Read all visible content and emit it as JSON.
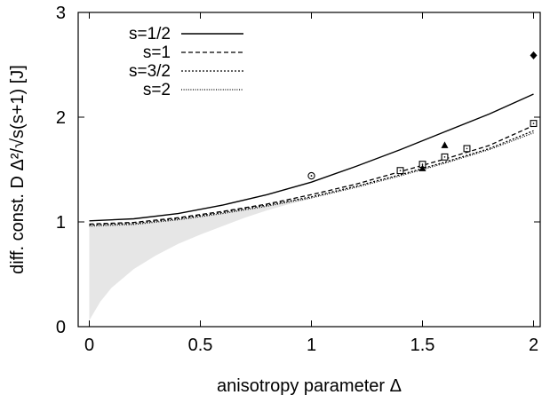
{
  "chart_data": {
    "type": "line",
    "xlabel": "anisotropy parameter Δ",
    "ylabel": "diff. const. D Δ²/√s(s+1) [J]",
    "xlim": [
      -0.05,
      2.03
    ],
    "ylim": [
      0,
      3
    ],
    "x_ticks": [
      {
        "value": 0,
        "label": "0"
      },
      {
        "value": 0.5,
        "label": "0.5"
      },
      {
        "value": 1,
        "label": "1"
      },
      {
        "value": 1.5,
        "label": "1.5"
      },
      {
        "value": 2,
        "label": "2"
      }
    ],
    "y_ticks": [
      {
        "value": 0,
        "label": "0"
      },
      {
        "value": 1,
        "label": "1"
      },
      {
        "value": 2,
        "label": "2"
      },
      {
        "value": 3,
        "label": "3"
      }
    ],
    "grid": false,
    "legend": {
      "position": "top-left"
    },
    "series": [
      {
        "name": "s=1/2",
        "style": "solid",
        "x": [
          0,
          0.2,
          0.4,
          0.6,
          0.8,
          1.0,
          1.2,
          1.4,
          1.6,
          1.8,
          2.0
        ],
        "y": [
          1.01,
          1.03,
          1.08,
          1.16,
          1.26,
          1.38,
          1.53,
          1.69,
          1.86,
          2.03,
          2.22
        ]
      },
      {
        "name": "s=1",
        "style": "dashed",
        "x": [
          0,
          0.2,
          0.4,
          0.6,
          0.8,
          1.0,
          1.2,
          1.4,
          1.6,
          1.8,
          2.0
        ],
        "y": [
          0.98,
          0.995,
          1.04,
          1.1,
          1.17,
          1.26,
          1.36,
          1.48,
          1.6,
          1.73,
          1.92
        ]
      },
      {
        "name": "s=3/2",
        "style": "dotted",
        "x": [
          0,
          0.2,
          0.4,
          0.6,
          0.8,
          1.0,
          1.2,
          1.4,
          1.6,
          1.8,
          2.0
        ],
        "y": [
          0.97,
          0.985,
          1.03,
          1.09,
          1.16,
          1.24,
          1.34,
          1.45,
          1.57,
          1.7,
          1.87
        ]
      },
      {
        "name": "s=2",
        "style": "fine-dotted",
        "x": [
          0,
          0.2,
          0.4,
          0.6,
          0.8,
          1.0,
          1.2,
          1.4,
          1.6,
          1.8,
          2.0
        ],
        "y": [
          0.96,
          0.975,
          1.02,
          1.08,
          1.15,
          1.23,
          1.33,
          1.44,
          1.56,
          1.69,
          1.85
        ]
      }
    ],
    "shaded_region": {
      "color": "#e6e6e6",
      "x": [
        0,
        0.05,
        0.1,
        0.2,
        0.3,
        0.4,
        0.5,
        0.6,
        0.7,
        0.8,
        0.9,
        1.0
      ],
      "lower": [
        0.06,
        0.24,
        0.37,
        0.55,
        0.68,
        0.79,
        0.88,
        0.96,
        1.04,
        1.11,
        1.17,
        1.22
      ],
      "upper": [
        0.96,
        0.962,
        0.965,
        0.975,
        0.995,
        1.02,
        1.05,
        1.08,
        1.115,
        1.15,
        1.19,
        1.23
      ]
    },
    "markers": [
      {
        "symbol": "circle-dot",
        "x": 1.0,
        "y": 1.44
      },
      {
        "symbol": "square-dot",
        "x": 1.4,
        "y": 1.49
      },
      {
        "symbol": "square-dot",
        "x": 1.5,
        "y": 1.55
      },
      {
        "symbol": "square-dot",
        "x": 1.6,
        "y": 1.62
      },
      {
        "symbol": "square-dot",
        "x": 1.7,
        "y": 1.7
      },
      {
        "symbol": "square-dot",
        "x": 2.0,
        "y": 1.94
      },
      {
        "symbol": "triangle",
        "x": 1.5,
        "y": 1.51
      },
      {
        "symbol": "triangle",
        "x": 1.6,
        "y": 1.73
      },
      {
        "symbol": "diamond",
        "x": 2.0,
        "y": 2.59
      }
    ]
  }
}
